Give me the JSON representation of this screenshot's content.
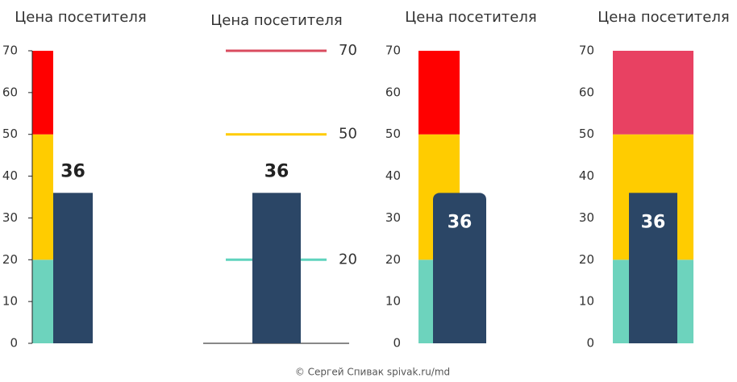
{
  "chart_data": [
    {
      "type": "bullet",
      "title": "Цена посетителя",
      "value": 36,
      "bar_color": "#2b4666",
      "bands": [
        {
          "value": 20,
          "color": "#6dd3bd"
        },
        {
          "value": 30,
          "color": "#ffcc00"
        },
        {
          "value": 20,
          "color": "#ff0000"
        }
      ],
      "ylim": [
        0,
        70
      ],
      "yticks": [
        0,
        10,
        20,
        30,
        40,
        50,
        60,
        70
      ]
    },
    {
      "type": "target",
      "title": "Цена посетителя",
      "value": 36,
      "bar_color": "#2b4666",
      "thresholds": [
        {
          "value": 20,
          "color": "#5fd3bd"
        },
        {
          "value": 50,
          "color": "#ffcc00"
        },
        {
          "value": 70,
          "color": "#d94b5f"
        }
      ],
      "ylim": [
        0,
        70
      ]
    },
    {
      "type": "bullet",
      "title": "Цена посетителя",
      "value": 36,
      "bar_color": "#2b4666",
      "bands": [
        {
          "value": 20,
          "color": "#6dd3bd"
        },
        {
          "value": 30,
          "color": "#ffcc00"
        },
        {
          "value": 20,
          "color": "#ff0000"
        }
      ],
      "ylim": [
        0,
        70
      ],
      "yticks": [
        0,
        10,
        20,
        30,
        40,
        50,
        60,
        70
      ]
    },
    {
      "type": "bullet",
      "title": "Цена посетителя",
      "value": 36,
      "bar_color": "#2b4666",
      "bands": [
        {
          "value": 20,
          "color": "#6dd3bd"
        },
        {
          "value": 30,
          "color": "#ffcc00"
        },
        {
          "value": 20,
          "color": "#e84162"
        }
      ],
      "ylim": [
        0,
        70
      ],
      "yticks": [
        0,
        10,
        20,
        30,
        40,
        50,
        60,
        70
      ]
    }
  ],
  "footer": "© Сергей Спивак  spivak.ru/md"
}
